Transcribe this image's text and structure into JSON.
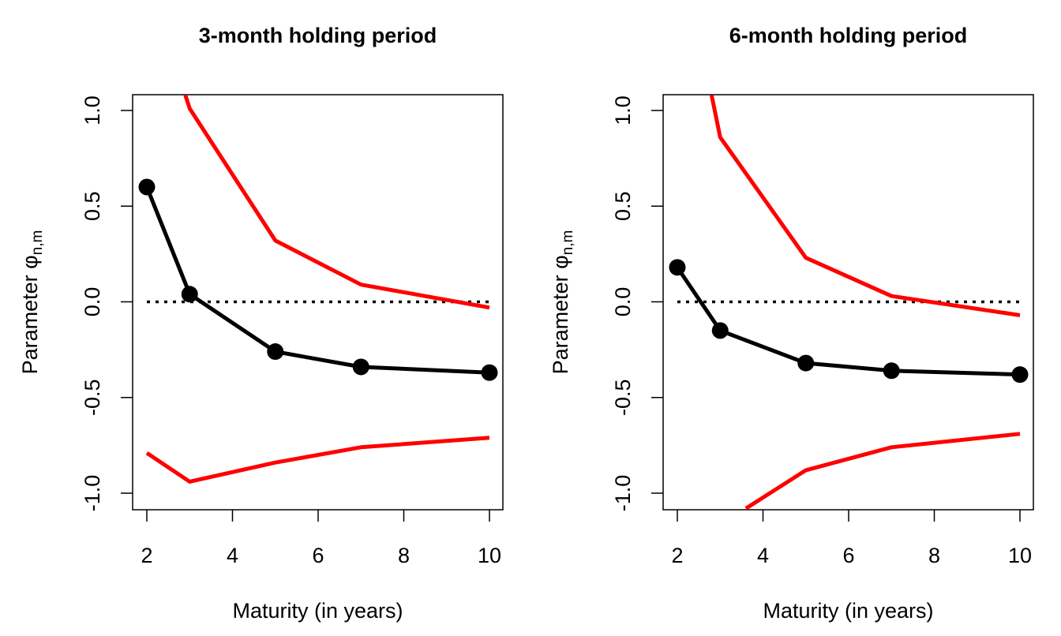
{
  "chart_data": [
    {
      "type": "line",
      "title": "3-month holding period",
      "xlabel": "Maturity (in years)",
      "ylabel": {
        "text": "Parameter ",
        "symbol": "φ",
        "subscript": "n,m"
      },
      "xlim": [
        2,
        10
      ],
      "ylim": [
        -1.0,
        1.0
      ],
      "x_ticks": [
        "2",
        "4",
        "6",
        "8",
        "10"
      ],
      "y_ticks": [
        "-1.0",
        "-0.5",
        "0.0",
        "0.5",
        "1.0"
      ],
      "reference_line": {
        "y": 0,
        "style": "dotted",
        "color": "#000000"
      },
      "series": [
        {
          "x": [
            2,
            3,
            5,
            7,
            10
          ],
          "values": [
            0.6,
            0.04,
            -0.26,
            -0.34,
            -0.37
          ],
          "color": "#000000",
          "markers": true
        },
        {
          "x": [
            2.9,
            3,
            5,
            7,
            10
          ],
          "values": [
            1.08,
            1.01,
            0.32,
            0.09,
            -0.03
          ],
          "color": "#ff0000",
          "markers": false
        },
        {
          "x": [
            2,
            3,
            5,
            7,
            10
          ],
          "values": [
            -0.79,
            -0.94,
            -0.84,
            -0.76,
            -0.71
          ],
          "color": "#ff0000",
          "markers": false
        }
      ]
    },
    {
      "type": "line",
      "title": "6-month holding period",
      "xlabel": "Maturity (in years)",
      "ylabel": {
        "text": "Parameter ",
        "symbol": "φ",
        "subscript": "n,m"
      },
      "xlim": [
        2,
        10
      ],
      "ylim": [
        -1.0,
        1.0
      ],
      "x_ticks": [
        "2",
        "4",
        "6",
        "8",
        "10"
      ],
      "y_ticks": [
        "-1.0",
        "-0.5",
        "0.0",
        "0.5",
        "1.0"
      ],
      "reference_line": {
        "y": 0,
        "style": "dotted",
        "color": "#000000"
      },
      "series": [
        {
          "x": [
            2,
            3,
            5,
            7,
            10
          ],
          "values": [
            0.18,
            -0.15,
            -0.32,
            -0.36,
            -0.38
          ],
          "color": "#000000",
          "markers": true
        },
        {
          "x": [
            2.8,
            3,
            5,
            7,
            10
          ],
          "values": [
            1.08,
            0.86,
            0.23,
            0.03,
            -0.07
          ],
          "color": "#ff0000",
          "markers": false
        },
        {
          "x": [
            3.6,
            5,
            7,
            10
          ],
          "values": [
            -1.08,
            -0.88,
            -0.76,
            -0.69
          ],
          "color": "#ff0000",
          "markers": false
        }
      ]
    }
  ]
}
